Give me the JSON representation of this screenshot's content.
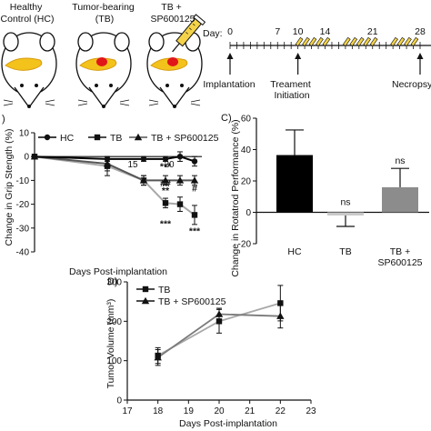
{
  "panel_a": {
    "groups": [
      {
        "label_lines": [
          "Healthy",
          "Control (HC)"
        ]
      },
      {
        "label_lines": [
          "Tumor-bearing",
          "(TB)"
        ]
      },
      {
        "label_lines": [
          "TB +",
          "SP600125"
        ]
      }
    ],
    "timeline": {
      "day_prefix": "Day:",
      "ticks": [
        "0",
        "7",
        "10",
        "14",
        "21",
        "28"
      ],
      "events": [
        {
          "label_lines": [
            "Implantation"
          ]
        },
        {
          "label_lines": [
            "Treament",
            "Initiation"
          ]
        },
        {
          "label_lines": [
            "Necropsy"
          ]
        }
      ]
    }
  },
  "chart_data": [
    {
      "panel": "B",
      "type": "line",
      "ylabel": "Change in Grip Stength (%)",
      "xlabel": "Days Post-implantation",
      "x": [
        0,
        10,
        15,
        18,
        20,
        22
      ],
      "x_tick_labels": {
        "15": "15",
        "20": "20"
      },
      "ylim": [
        -40,
        10
      ],
      "y_ticks": [
        10,
        0,
        -10,
        -20,
        -30,
        -40
      ],
      "series": [
        {
          "name": "HC",
          "color": "#000000",
          "marker": "circle",
          "values": [
            0,
            -1,
            -1,
            -1,
            0,
            -2
          ],
          "errors": [
            0,
            1,
            1,
            1,
            2,
            2
          ]
        },
        {
          "name": "TB",
          "color": "#a8a8a8",
          "marker": "square",
          "values": [
            0,
            -4,
            -10,
            -19.5,
            -20,
            -24.5
          ],
          "errors": [
            0,
            4,
            2,
            2,
            3,
            4
          ]
        },
        {
          "name": "TB + SP600125",
          "color": "#555555",
          "marker": "triangle",
          "values": [
            0,
            -3,
            -10,
            -10,
            -10,
            -10
          ],
          "errors": [
            0,
            3,
            2,
            2,
            2,
            2
          ]
        }
      ],
      "annotations": [
        {
          "x": 18,
          "y": -4,
          "text": "***"
        },
        {
          "x": 18,
          "y": -11,
          "text": "##"
        },
        {
          "x": 18,
          "y": -14,
          "text": "**"
        },
        {
          "x": 18,
          "y": -28,
          "text": "***"
        },
        {
          "x": 22,
          "y": -13,
          "text": "#"
        },
        {
          "x": 22,
          "y": -31,
          "text": "***"
        }
      ]
    },
    {
      "panel": "C",
      "type": "bar",
      "title": "C)",
      "ylabel": "Change in Rotatrod Performance (%)",
      "ylim": [
        -20,
        60
      ],
      "y_ticks": [
        60,
        40,
        20,
        0,
        -20
      ],
      "categories": [
        [
          "HC"
        ],
        [
          "TB"
        ],
        [
          "TB +",
          "SP600125"
        ]
      ],
      "values": [
        36.5,
        -2,
        16
      ],
      "errors": [
        16,
        7,
        12
      ],
      "colors": [
        "#000000",
        "#c8c8c8",
        "#8c8c8c"
      ],
      "significance": [
        "",
        "ns",
        "ns"
      ]
    },
    {
      "panel": "D",
      "type": "line",
      "title": "D)",
      "ylabel": "Tumor Volume (mm³)",
      "xlabel": "Days Post-implantation",
      "xlim": [
        17,
        23
      ],
      "x_ticks": [
        17,
        18,
        19,
        20,
        21,
        22,
        23
      ],
      "ylim": [
        0,
        300
      ],
      "y_ticks": [
        0,
        100,
        200,
        300
      ],
      "x": [
        18,
        20,
        22
      ],
      "series": [
        {
          "name": "TB",
          "color": "#000000",
          "marker": "square",
          "values": [
            113,
            200,
            246
          ],
          "errors": [
            20,
            30,
            45
          ]
        },
        {
          "name": "TB + SP600125",
          "color": "#555555",
          "marker": "triangle",
          "values": [
            108,
            218,
            213
          ],
          "errors": [
            20,
            15,
            30
          ]
        }
      ]
    }
  ]
}
